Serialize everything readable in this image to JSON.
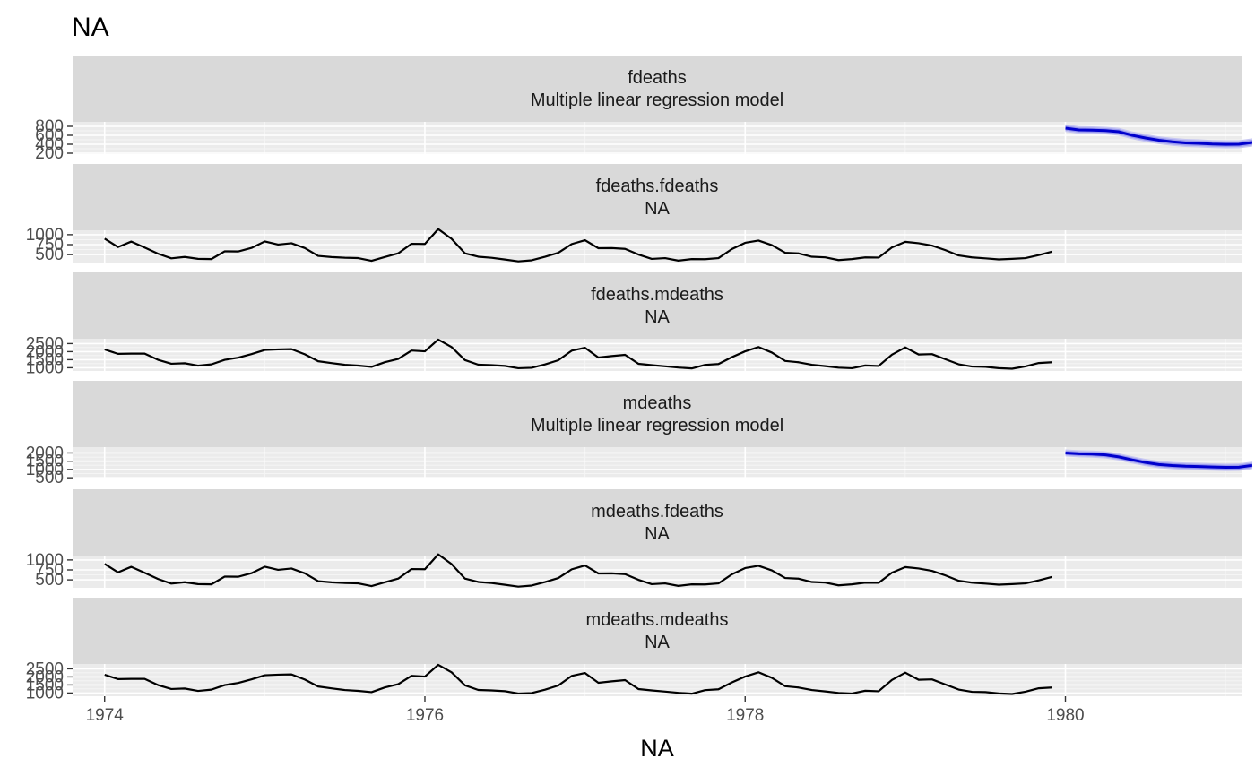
{
  "chart_data": {
    "type": "line",
    "title": "NA",
    "xlabel": "NA",
    "x_ticks": [
      1974,
      1976,
      1978,
      1980
    ],
    "x_range": [
      1973.8,
      1981.1
    ],
    "grid": true,
    "panels": [
      {
        "strip": [
          "fdeaths",
          "Multiple linear regression model"
        ],
        "ylim": [
          180,
          900
        ],
        "y_ticks": [
          200,
          400,
          600,
          800
        ],
        "y_tick_labels": [
          "200",
          "400",
          "600",
          "800"
        ],
        "series": [
          {
            "kind": "forecast",
            "start": 1980,
            "step": 0.0833333,
            "values": [
              760,
              720,
              715,
              705,
              680,
              600,
              540,
              490,
              455,
              430,
              420,
              405,
              398,
              400,
              440
            ],
            "interval_80": {
              "half_width": [
                55,
                55,
                56,
                56,
                57,
                57,
                58,
                58,
                59,
                59,
                60,
                60,
                61,
                61,
                62
              ]
            },
            "interval_95": {
              "half_width": [
                85,
                85,
                86,
                86,
                87,
                87,
                88,
                88,
                89,
                89,
                90,
                90,
                91,
                91,
                92
              ]
            }
          }
        ]
      },
      {
        "strip": [
          "fdeaths.fdeaths",
          "NA"
        ],
        "ylim": [
          300,
          1110
        ],
        "y_ticks": [
          500,
          750,
          1000
        ],
        "y_tick_labels": [
          "500",
          "750",
          "1000"
        ],
        "series": [
          {
            "kind": "history",
            "start": 1974,
            "step": 0.0833333,
            "values": [
              901,
              689,
              827,
              677,
              522,
              406,
              441,
              393,
              387,
              582,
              578,
              666,
              830,
              752,
              785,
              664,
              467,
              438,
              421,
              412,
              343,
              440,
              531,
              771,
              767,
              1141,
              896,
              532,
              447,
              420,
              376,
              330,
              357,
              445,
              546,
              764,
              862,
              660,
              663,
              643,
              502,
              392,
              411,
              348,
              387,
              385,
              411,
              638,
              796,
              853,
              737,
              546,
              530,
              446,
              431,
              362,
              387,
              430,
              425,
              679,
              821,
              785,
              727,
              612,
              478,
              429,
              405,
              379,
              393,
              411,
              487,
              574
            ]
          }
        ]
      },
      {
        "strip": [
          "fdeaths.mdeaths",
          "NA"
        ],
        "ylim": [
          800,
          2800
        ],
        "y_ticks": [
          1000,
          1500,
          2000,
          2500
        ],
        "y_tick_labels": [
          "1000",
          "1500",
          "2000",
          "2500"
        ],
        "series": [
          {
            "kind": "history",
            "start": 1974,
            "step": 0.0833333,
            "values": [
              2134,
              1863,
              1877,
              1877,
              1492,
              1249,
              1280,
              1131,
              1209,
              1492,
              1621,
              1846,
              2103,
              2137,
              2153,
              1833,
              1403,
              1288,
              1186,
              1133,
              1053,
              1347,
              1545,
              2066,
              2020,
              2750,
              2283,
              1479,
              1189,
              1160,
              1113,
              970,
              999,
              1208,
              1467,
              2059,
              2240,
              1634,
              1722,
              1801,
              1246,
              1162,
              1087,
              1013,
              959,
              1179,
              1229,
              1655,
              2019,
              2284,
              1942,
              1423,
              1340,
              1187,
              1098,
              1004,
              970,
              1140,
              1110,
              1812,
              2263,
              1820,
              1846,
              1531,
              1215,
              1075,
              1056,
              975,
              940,
              1081,
              1294,
              1341
            ]
          }
        ]
      },
      {
        "strip": [
          "mdeaths",
          "Multiple linear regression model"
        ],
        "ylim": [
          400,
          2350
        ],
        "y_ticks": [
          500,
          1000,
          1500,
          2000
        ],
        "y_tick_labels": [
          "500",
          "1000",
          "1500",
          "2000"
        ],
        "series": [
          {
            "kind": "forecast",
            "start": 1980,
            "step": 0.0833333,
            "values": [
              2000,
              1950,
              1930,
              1880,
              1760,
              1580,
              1420,
              1300,
              1240,
              1200,
              1180,
              1150,
              1130,
              1140,
              1250
            ],
            "interval_80": {
              "half_width": [
                140,
                140,
                142,
                142,
                144,
                144,
                146,
                146,
                148,
                148,
                150,
                150,
                152,
                152,
                154
              ]
            },
            "interval_95": {
              "half_width": [
                215,
                215,
                217,
                217,
                219,
                219,
                221,
                221,
                223,
                223,
                225,
                225,
                227,
                227,
                229
              ]
            }
          }
        ]
      },
      {
        "strip": [
          "mdeaths.fdeaths",
          "NA"
        ],
        "ylim": [
          300,
          1110
        ],
        "y_ticks": [
          500,
          750,
          1000
        ],
        "y_tick_labels": [
          "500",
          "750",
          "1000"
        ],
        "series": [
          {
            "kind": "history",
            "start": 1974,
            "step": 0.0833333,
            "values": [
              901,
              689,
              827,
              677,
              522,
              406,
              441,
              393,
              387,
              582,
              578,
              666,
              830,
              752,
              785,
              664,
              467,
              438,
              421,
              412,
              343,
              440,
              531,
              771,
              767,
              1141,
              896,
              532,
              447,
              420,
              376,
              330,
              357,
              445,
              546,
              764,
              862,
              660,
              663,
              643,
              502,
              392,
              411,
              348,
              387,
              385,
              411,
              638,
              796,
              853,
              737,
              546,
              530,
              446,
              431,
              362,
              387,
              430,
              425,
              679,
              821,
              785,
              727,
              612,
              478,
              429,
              405,
              379,
              393,
              411,
              487,
              574
            ]
          }
        ]
      },
      {
        "strip": [
          "mdeaths.mdeaths",
          "NA"
        ],
        "ylim": [
          800,
          2800
        ],
        "y_ticks": [
          1000,
          1500,
          2000,
          2500
        ],
        "y_tick_labels": [
          "1000",
          "1500",
          "2000",
          "2500"
        ],
        "series": [
          {
            "kind": "history",
            "start": 1974,
            "step": 0.0833333,
            "values": [
              2134,
              1863,
              1877,
              1877,
              1492,
              1249,
              1280,
              1131,
              1209,
              1492,
              1621,
              1846,
              2103,
              2137,
              2153,
              1833,
              1403,
              1288,
              1186,
              1133,
              1053,
              1347,
              1545,
              2066,
              2020,
              2750,
              2283,
              1479,
              1189,
              1160,
              1113,
              970,
              999,
              1208,
              1467,
              2059,
              2240,
              1634,
              1722,
              1801,
              1246,
              1162,
              1087,
              1013,
              959,
              1179,
              1229,
              1655,
              2019,
              2284,
              1942,
              1423,
              1340,
              1187,
              1098,
              1004,
              970,
              1140,
              1110,
              1812,
              2263,
              1820,
              1846,
              1531,
              1215,
              1075,
              1056,
              975,
              940,
              1081,
              1294,
              1341
            ]
          }
        ]
      }
    ],
    "colors": {
      "panel_bg": "#ebebeb",
      "strip_bg": "#d9d9d9",
      "grid_major": "#ffffff",
      "grid_minor": "#f5f5f5",
      "history_line": "#000000",
      "forecast_line": "#0000cc",
      "interval_95": "#c6c6f2",
      "interval_80": "#9b9bee"
    }
  }
}
